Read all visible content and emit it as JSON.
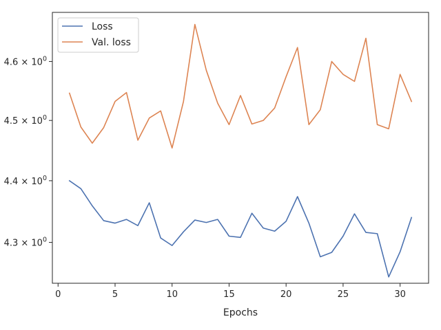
{
  "chart_data": {
    "type": "line",
    "title": "",
    "xlabel": "Epochs",
    "ylabel": "",
    "yscale": "log",
    "xlim": [
      -0.5,
      32.5
    ],
    "ylim": [
      4.235,
      4.685
    ],
    "grid": false,
    "legend_placement": "top-left",
    "x_ticks": [
      {
        "value": 0,
        "label": "0"
      },
      {
        "value": 5,
        "label": "5"
      },
      {
        "value": 10,
        "label": "10"
      },
      {
        "value": 15,
        "label": "15"
      },
      {
        "value": 20,
        "label": "20"
      },
      {
        "value": 25,
        "label": "25"
      },
      {
        "value": 30,
        "label": "30"
      }
    ],
    "y_ticks": [
      {
        "value": 4.3,
        "label": "4.3 × 10",
        "exp": "0"
      },
      {
        "value": 4.4,
        "label": "4.4 × 10",
        "exp": "0"
      },
      {
        "value": 4.5,
        "label": "4.5 × 10",
        "exp": "0"
      },
      {
        "value": 4.6,
        "label": "4.6 × 10",
        "exp": "0"
      }
    ],
    "x": [
      1,
      2,
      3,
      4,
      5,
      6,
      7,
      8,
      9,
      10,
      11,
      12,
      13,
      14,
      15,
      16,
      17,
      18,
      19,
      20,
      21,
      22,
      23,
      24,
      25,
      26,
      27,
      28,
      29,
      30,
      31
    ],
    "series": [
      {
        "name": "Loss",
        "color": "#4c72b0",
        "values": [
          4.4,
          4.387,
          4.359,
          4.335,
          4.331,
          4.337,
          4.327,
          4.364,
          4.307,
          4.295,
          4.317,
          4.336,
          4.332,
          4.337,
          4.31,
          4.308,
          4.347,
          4.323,
          4.318,
          4.334,
          4.374,
          4.331,
          4.277,
          4.284,
          4.31,
          4.346,
          4.316,
          4.314,
          4.245,
          4.285,
          4.34
        ]
      },
      {
        "name": "Val. loss",
        "color": "#dd8452",
        "values": [
          4.546,
          4.489,
          4.462,
          4.488,
          4.532,
          4.547,
          4.467,
          4.504,
          4.516,
          4.454,
          4.532,
          4.664,
          4.585,
          4.529,
          4.493,
          4.542,
          4.494,
          4.5,
          4.521,
          4.574,
          4.624,
          4.493,
          4.518,
          4.6,
          4.578,
          4.566,
          4.64,
          4.493,
          4.486,
          4.578,
          4.532
        ]
      }
    ]
  }
}
